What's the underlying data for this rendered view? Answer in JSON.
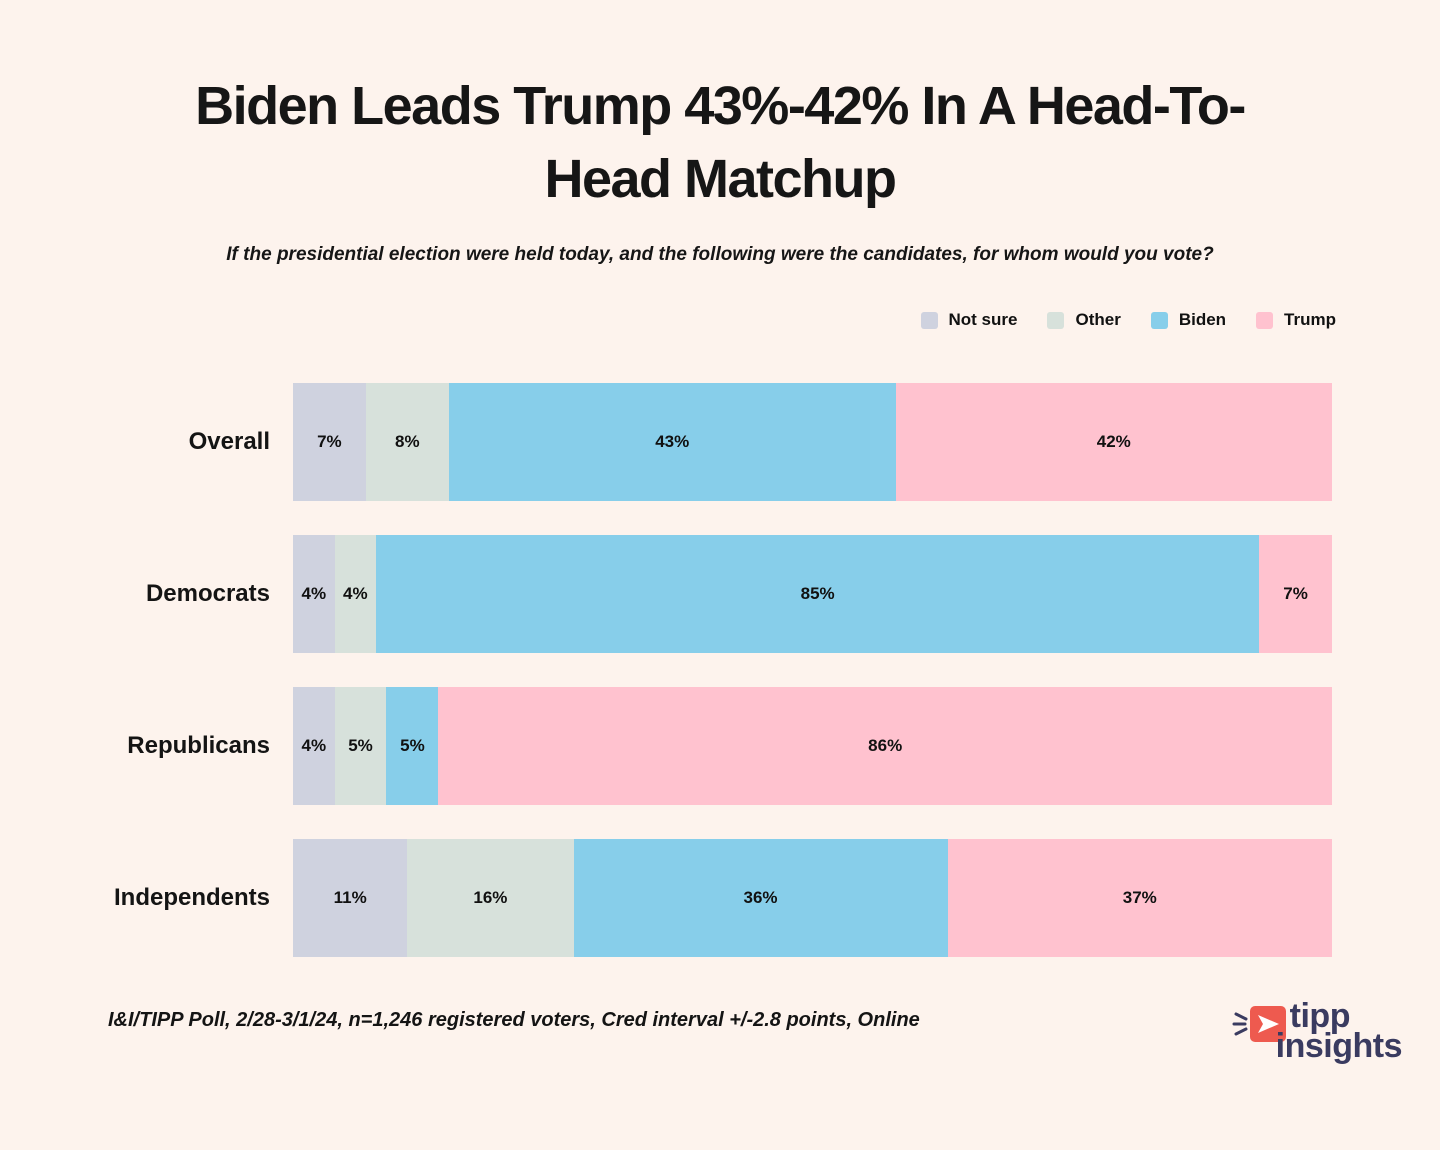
{
  "header": {
    "title_lines": [
      "Biden Leads Trump 43%-42% In A Head-To-",
      "Head Matchup"
    ],
    "subtitle": "If the presidential election were held today, and the following were the candidates, for whom would you vote?"
  },
  "legend": {
    "items": [
      {
        "label": "Not sure",
        "color": "#cfd2df"
      },
      {
        "label": "Other",
        "color": "#d7e1db"
      },
      {
        "label": "Biden",
        "color": "#87ceea"
      },
      {
        "label": "Trump",
        "color": "#ffc2cf"
      }
    ]
  },
  "chart_data": {
    "type": "bar",
    "orientation": "horizontal-stacked",
    "title": "Biden Leads Trump 43%-42% In A Head-To-Head Matchup",
    "subtitle": "If the presidential election were held today, and the following were the candidates, for whom would you vote?",
    "categories": [
      "Overall",
      "Democrats",
      "Republicans",
      "Independents"
    ],
    "series": [
      {
        "name": "Not sure",
        "color": "#cfd2df",
        "values": [
          7,
          4,
          4,
          11
        ]
      },
      {
        "name": "Other",
        "color": "#d7e1db",
        "values": [
          8,
          4,
          5,
          16
        ]
      },
      {
        "name": "Biden",
        "color": "#87ceea",
        "values": [
          43,
          85,
          5,
          36
        ]
      },
      {
        "name": "Trump",
        "color": "#ffc2cf",
        "values": [
          42,
          7,
          86,
          37
        ]
      }
    ],
    "value_suffix": "%",
    "xlim": [
      0,
      100
    ],
    "grid": false,
    "legend_position": "top-right",
    "data_labels": "inside-center"
  },
  "footer": {
    "source_note": "I&I/TIPP Poll, 2/28-3/1/24, n=1,246 registered voters, Cred interval +/-2.8 points, Online",
    "logo_line1": "tipp",
    "logo_line2": "insights",
    "logo_colors": {
      "icon": "#ee5a4f",
      "text": "#3a3b60"
    }
  },
  "colors": {
    "background": "#fdf3ed",
    "text": "#111111"
  }
}
